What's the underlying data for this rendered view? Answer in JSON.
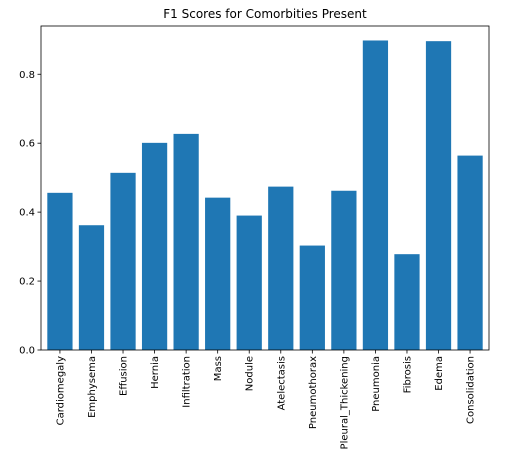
{
  "chart_data": {
    "type": "bar",
    "title": "F1 Scores for Comorbities Present",
    "xlabel": "",
    "ylabel": "",
    "categories": [
      "Cardiomegaly",
      "Emphysema",
      "Effusion",
      "Hernia",
      "Infiltration",
      "Mass",
      "Nodule",
      "Atelectasis",
      "Pneumothorax",
      "Pleural_Thickening",
      "Pneumonia",
      "Fibrosis",
      "Edema",
      "Consolidation"
    ],
    "values": [
      0.456,
      0.362,
      0.514,
      0.601,
      0.627,
      0.442,
      0.39,
      0.474,
      0.303,
      0.462,
      0.898,
      0.278,
      0.896,
      0.564
    ],
    "ylim": [
      0,
      0.94
    ],
    "yticks": [
      0.0,
      0.2,
      0.4,
      0.6,
      0.8
    ],
    "ytick_labels": [
      "0.0",
      "0.2",
      "0.4",
      "0.6",
      "0.8"
    ],
    "bar_color": "#1f77b4",
    "grid": false
  }
}
